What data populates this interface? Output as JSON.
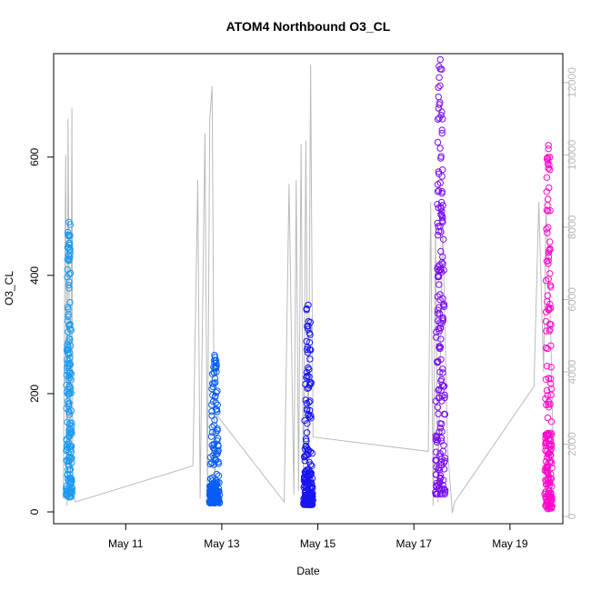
{
  "chart_data": {
    "type": "scatter",
    "title": "ATOM4 Northbound O3_CL",
    "xlabel": "Date",
    "ylabel": "O3_CL",
    "x_ticks": [
      "May 11",
      "May 13",
      "May 15",
      "May 17",
      "May 19"
    ],
    "x_tick_days": [
      11,
      13,
      15,
      17,
      19
    ],
    "xlim_days": [
      9.5,
      20.1
    ],
    "ylim": [
      -20,
      775
    ],
    "y_ticks": [
      0,
      200,
      400,
      600
    ],
    "y2_ticks": [
      0,
      2000,
      4000,
      6000,
      8000,
      10000,
      12000
    ],
    "y2lim": [
      -200,
      12800
    ],
    "y2_color": "#bbbbbb",
    "grid": false,
    "legend": "none",
    "series": [
      {
        "color": "#1E9BF0",
        "x_center": 9.82,
        "x_spread": 0.14,
        "y_min": 25,
        "y_max": 490,
        "median": 230,
        "high_min": 380,
        "high_max": 490
      },
      {
        "color": "#0A5CF5",
        "x_center": 12.85,
        "x_spread": 0.22,
        "y_min": 15,
        "y_max": 265,
        "median": 40,
        "high_min": 180,
        "high_max": 265
      },
      {
        "color": "#1A16F0",
        "x_center": 14.8,
        "x_spread": 0.2,
        "y_min": 12,
        "y_max": 350,
        "median": 55,
        "high_min": 240,
        "high_max": 350
      },
      {
        "color": "#7A0EF0",
        "x_center": 17.55,
        "x_spread": 0.22,
        "y_min": 30,
        "y_max": 765,
        "median": 380,
        "high_min": 550,
        "high_max": 765
      },
      {
        "color": "#FF0ACC",
        "x_center": 19.8,
        "x_spread": 0.16,
        "y_min": 5,
        "y_max": 620,
        "median": 100,
        "high_min": 400,
        "high_max": 620
      }
    ],
    "secondary_line": {
      "color": "#bbbbbb",
      "x": [
        9.7,
        9.75,
        9.78,
        9.8,
        9.85,
        9.88,
        9.9,
        9.95,
        12.4,
        12.5,
        12.55,
        12.65,
        12.7,
        12.75,
        12.8,
        12.85,
        12.9,
        14.3,
        14.4,
        14.5,
        14.55,
        14.6,
        14.65,
        14.7,
        14.75,
        14.8,
        14.85,
        14.9,
        17.3,
        17.35,
        17.4,
        17.45,
        17.5,
        17.6,
        17.7,
        17.8,
        17.85,
        19.5,
        19.6,
        19.7,
        19.75,
        19.8,
        19.85,
        19.9
      ],
      "y": [
        500,
        10000,
        300,
        11000,
        500,
        11300,
        700,
        400,
        1400,
        9300,
        500,
        10600,
        700,
        11000,
        11900,
        700,
        2800,
        400,
        9200,
        600,
        9300,
        700,
        10300,
        600,
        10400,
        900,
        12500,
        2200,
        1800,
        8700,
        300,
        8000,
        400,
        8100,
        1900,
        100,
        400,
        3600,
        8700,
        4000,
        8500,
        7000,
        5000,
        1800
      ]
    }
  }
}
